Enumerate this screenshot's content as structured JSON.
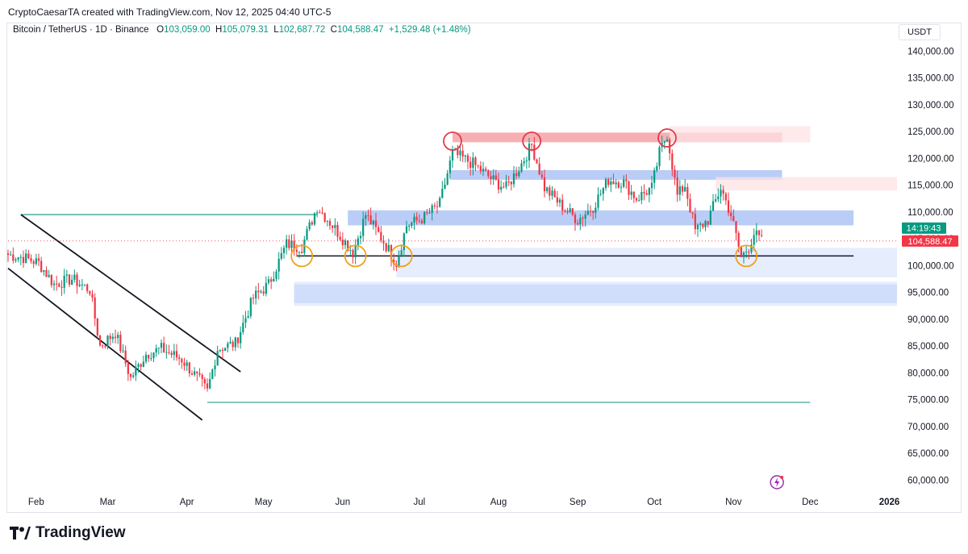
{
  "header": {
    "credit": "CryptoCaesarTA created with TradingView.com, Nov 12, 2025 04:40 UTC-5"
  },
  "legend": {
    "symbol": "Bitcoin / TetherUS · 1D · Binance",
    "o_label": "O",
    "o_value": "103,059.00",
    "h_label": "H",
    "h_value": "105,079.31",
    "l_label": "L",
    "l_value": "102,687.72",
    "c_label": "C",
    "c_value": "104,588.47",
    "change": "+1,529.48 (+1.48%)"
  },
  "price_axis": {
    "currency": "USDT",
    "timer": "14:19:43",
    "last_price": "104,588.47"
  },
  "brand": {
    "name": "TradingView"
  },
  "colors": {
    "up": "#089981",
    "down": "#f23645",
    "supply_zone": "#f7a1a7",
    "supply_zone_light": "#fde2e4",
    "demand_zone": "#a9c0f5",
    "demand_zone_light": "#dbe6fc",
    "marker_red": "#e23b4a",
    "marker_orange": "#f0a11b",
    "trend_line": "#131722",
    "range_line": "#2a9d8f"
  },
  "chart_data": {
    "type": "candlestick",
    "title": "",
    "pair": "Bitcoin / TetherUS",
    "interval": "1D",
    "exchange": "Binance",
    "ylim": [
      57500,
      142000
    ],
    "y_ticks": [
      140000,
      135000,
      130000,
      125000,
      120000,
      115000,
      110000,
      105000,
      100000,
      95000,
      90000,
      85000,
      80000,
      75000,
      70000,
      65000,
      60000
    ],
    "y_tick_labels": [
      "140,000.00",
      "135,000.00",
      "130,000.00",
      "125,000.00",
      "120,000.00",
      "115,000.00",
      "110,000.00",
      "105,000.00",
      "100,000.00",
      "95,000.00",
      "90,000.00",
      "85,000.00",
      "80,000.00",
      "75,000.00",
      "70,000.00",
      "65,000.00",
      "60,000.00"
    ],
    "x_range": [
      "2025-01-21",
      "2026-01-04"
    ],
    "x_ticks": [
      {
        "label": "Feb",
        "date": "2025-02-01"
      },
      {
        "label": "Mar",
        "date": "2025-03-01"
      },
      {
        "label": "Apr",
        "date": "2025-04-01"
      },
      {
        "label": "May",
        "date": "2025-05-01"
      },
      {
        "label": "Jun",
        "date": "2025-06-01"
      },
      {
        "label": "Jul",
        "date": "2025-07-01"
      },
      {
        "label": "Aug",
        "date": "2025-08-01"
      },
      {
        "label": "Sep",
        "date": "2025-09-01"
      },
      {
        "label": "Oct",
        "date": "2025-10-01"
      },
      {
        "label": "Nov",
        "date": "2025-11-01"
      },
      {
        "label": "Dec",
        "date": "2025-12-01"
      },
      {
        "label": "2026",
        "date": "2026-01-01"
      }
    ],
    "last_close": 104588.47,
    "ohlc_anchor": [
      [
        "2025-01-21",
        102000
      ],
      [
        "2025-01-27",
        101500
      ],
      [
        "2025-02-02",
        100500
      ],
      [
        "2025-02-08",
        96500
      ],
      [
        "2025-02-15",
        97500
      ],
      [
        "2025-02-22",
        95500
      ],
      [
        "2025-02-26",
        85000
      ],
      [
        "2025-03-04",
        87500
      ],
      [
        "2025-03-10",
        79000
      ],
      [
        "2025-03-16",
        83500
      ],
      [
        "2025-03-22",
        84500
      ],
      [
        "2025-03-30",
        82500
      ],
      [
        "2025-04-06",
        78500
      ],
      [
        "2025-04-09",
        76500
      ],
      [
        "2025-04-13",
        84500
      ],
      [
        "2025-04-20",
        85500
      ],
      [
        "2025-04-27",
        94000
      ],
      [
        "2025-05-03",
        96500
      ],
      [
        "2025-05-10",
        104000
      ],
      [
        "2025-05-16",
        103500
      ],
      [
        "2025-05-22",
        111000
      ],
      [
        "2025-05-28",
        107500
      ],
      [
        "2025-06-05",
        102500
      ],
      [
        "2025-06-10",
        109500
      ],
      [
        "2025-06-17",
        104500
      ],
      [
        "2025-06-22",
        100500
      ],
      [
        "2025-06-26",
        107500
      ],
      [
        "2025-07-03",
        109000
      ],
      [
        "2025-07-09",
        111500
      ],
      [
        "2025-07-14",
        121000
      ],
      [
        "2025-07-22",
        119000
      ],
      [
        "2025-07-31",
        115500
      ],
      [
        "2025-08-04",
        114500
      ],
      [
        "2025-08-10",
        119000
      ],
      [
        "2025-08-14",
        122500
      ],
      [
        "2025-08-19",
        114500
      ],
      [
        "2025-08-26",
        111000
      ],
      [
        "2025-09-01",
        108500
      ],
      [
        "2025-09-07",
        111000
      ],
      [
        "2025-09-13",
        116000
      ],
      [
        "2025-09-19",
        115500
      ],
      [
        "2025-09-24",
        112500
      ],
      [
        "2025-09-30",
        114500
      ],
      [
        "2025-10-03",
        121000
      ],
      [
        "2025-10-06",
        124500
      ],
      [
        "2025-10-10",
        113000
      ],
      [
        "2025-10-13",
        115000
      ],
      [
        "2025-10-17",
        106500
      ],
      [
        "2025-10-22",
        108500
      ],
      [
        "2025-10-27",
        114500
      ],
      [
        "2025-10-31",
        109500
      ],
      [
        "2025-11-04",
        101500
      ],
      [
        "2025-11-07",
        103500
      ],
      [
        "2025-11-09",
        106000
      ],
      [
        "2025-11-12",
        104588
      ]
    ],
    "zones": [
      {
        "kind": "supply",
        "from": "2025-07-14",
        "to": "2025-11-20",
        "low": 123000,
        "high": 124800
      },
      {
        "kind": "supply_faded",
        "from": "2025-10-07",
        "to": "2025-12-01",
        "low": 123000,
        "high": 126000
      },
      {
        "kind": "demand",
        "from": "2025-07-13",
        "to": "2025-11-20",
        "low": 116000,
        "high": 117800
      },
      {
        "kind": "supply_faded",
        "from": "2025-10-25",
        "to": "2026-01-04",
        "low": 114000,
        "high": 116500
      },
      {
        "kind": "demand",
        "from": "2025-06-03",
        "to": "2025-12-18",
        "low": 107500,
        "high": 110300
      },
      {
        "kind": "demand_faded",
        "from": "2025-06-22",
        "to": "2026-01-04",
        "low": 97800,
        "high": 103300
      },
      {
        "kind": "demand",
        "from": "2025-05-13",
        "to": "2026-01-04",
        "low": 93000,
        "high": 96500
      },
      {
        "kind": "demand_faded",
        "from": "2025-05-13",
        "to": "2026-01-04",
        "low": 92500,
        "high": 97000
      }
    ],
    "lines": [
      {
        "kind": "support",
        "from": "2025-05-14",
        "to": "2025-12-18",
        "value": 101800
      },
      {
        "kind": "range_top",
        "from": "2025-01-26",
        "to": "2025-05-22",
        "value": 109500
      },
      {
        "kind": "range_bottom",
        "from": "2025-04-09",
        "to": "2025-12-01",
        "value": 74500
      },
      {
        "kind": "channel_upper",
        "from_date": "2025-01-26",
        "from_value": 109500,
        "to_date": "2025-04-22",
        "to_value": 80200
      },
      {
        "kind": "channel_lower",
        "from_date": "2025-01-21",
        "from_value": 99500,
        "to_date": "2025-04-07",
        "to_value": 71200
      }
    ],
    "markers": [
      {
        "kind": "top",
        "date": "2025-07-14",
        "value": 123200
      },
      {
        "kind": "top",
        "date": "2025-08-14",
        "value": 123200
      },
      {
        "kind": "top",
        "date": "2025-10-06",
        "value": 123800
      },
      {
        "kind": "bottom",
        "date": "2025-05-16",
        "value": 101800
      },
      {
        "kind": "bottom",
        "date": "2025-06-06",
        "value": 101800
      },
      {
        "kind": "bottom",
        "date": "2025-06-24",
        "value": 101800
      },
      {
        "kind": "bottom",
        "date": "2025-11-06",
        "value": 101800
      }
    ]
  }
}
